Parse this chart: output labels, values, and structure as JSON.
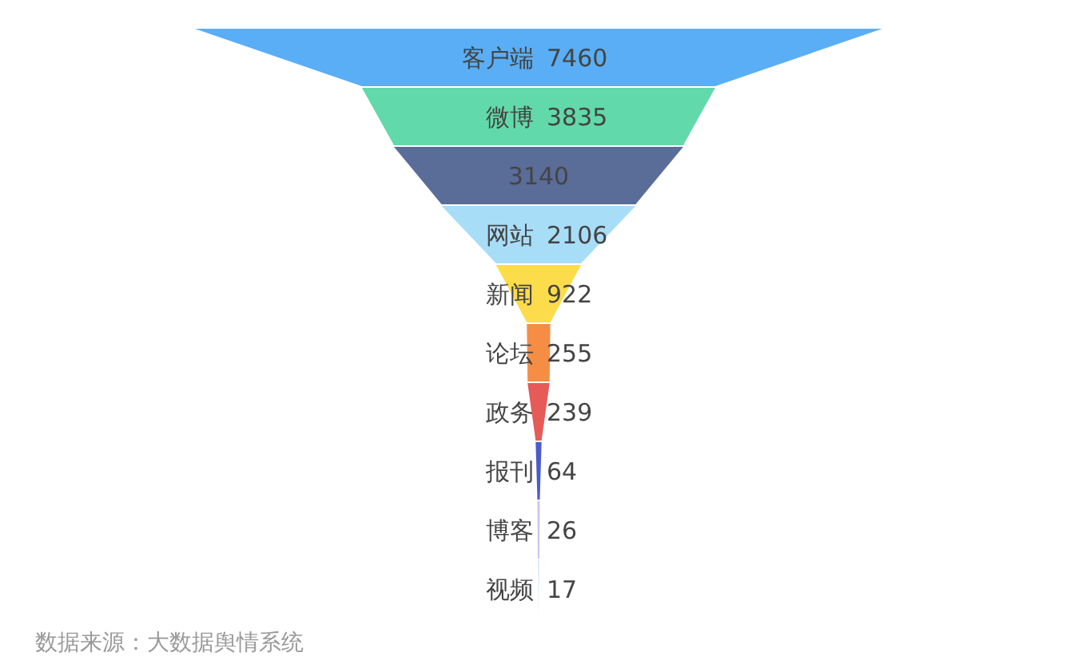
{
  "chart_data": {
    "type": "other",
    "categories": [
      "客户端",
      "微博",
      null,
      "网站",
      "新闻",
      "论坛",
      "政务",
      "报刊",
      "博客",
      "视频"
    ],
    "values": [
      7460,
      3835,
      3140,
      2106,
      922,
      255,
      239,
      64,
      26,
      17
    ],
    "colors": [
      "#5aaef5",
      "#62d9aa",
      "#5a6c98",
      "#a8ddf8",
      "#fddc4c",
      "#f68d45",
      "#e65a58",
      "#4a5ccc",
      "#c9c6f0",
      "#d9ecf8"
    ],
    "data_labels": true,
    "annotations": [
      "数据来源：大数据舆情系统"
    ]
  }
}
